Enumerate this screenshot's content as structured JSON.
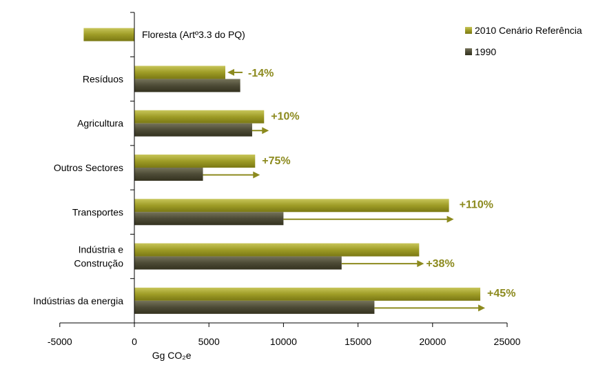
{
  "chart_data": {
    "type": "bar",
    "orientation": "horizontal",
    "categories": [
      "Floresta (Artº3.3 do PQ)",
      "Resíduos",
      "Agricultura",
      "Outros Sectores",
      "Transportes",
      "Indústria e Construção",
      "Indústrias da energia"
    ],
    "series": [
      {
        "name": "2010 Cenário Referência",
        "values": [
          -3400,
          6100,
          8700,
          8100,
          21100,
          19100,
          23200
        ]
      },
      {
        "name": "1990",
        "values": [
          null,
          7100,
          7900,
          4600,
          10000,
          13900,
          16100
        ]
      }
    ],
    "changes": [
      null,
      "-14%",
      "+10%",
      "+75%",
      "+110%",
      "+38%",
      "+45%"
    ],
    "xlabel": "Gg CO₂e",
    "xlim": [
      -5000,
      25000
    ],
    "xticks": [
      -5000,
      0,
      5000,
      10000,
      15000,
      20000,
      25000
    ],
    "legend_position": "top-right",
    "grid": false,
    "colors": {
      "series_2010": "#9c9a24",
      "series_1990": "#4d4b36",
      "annotation": "#8c8a1e",
      "axis": "#000000"
    }
  }
}
